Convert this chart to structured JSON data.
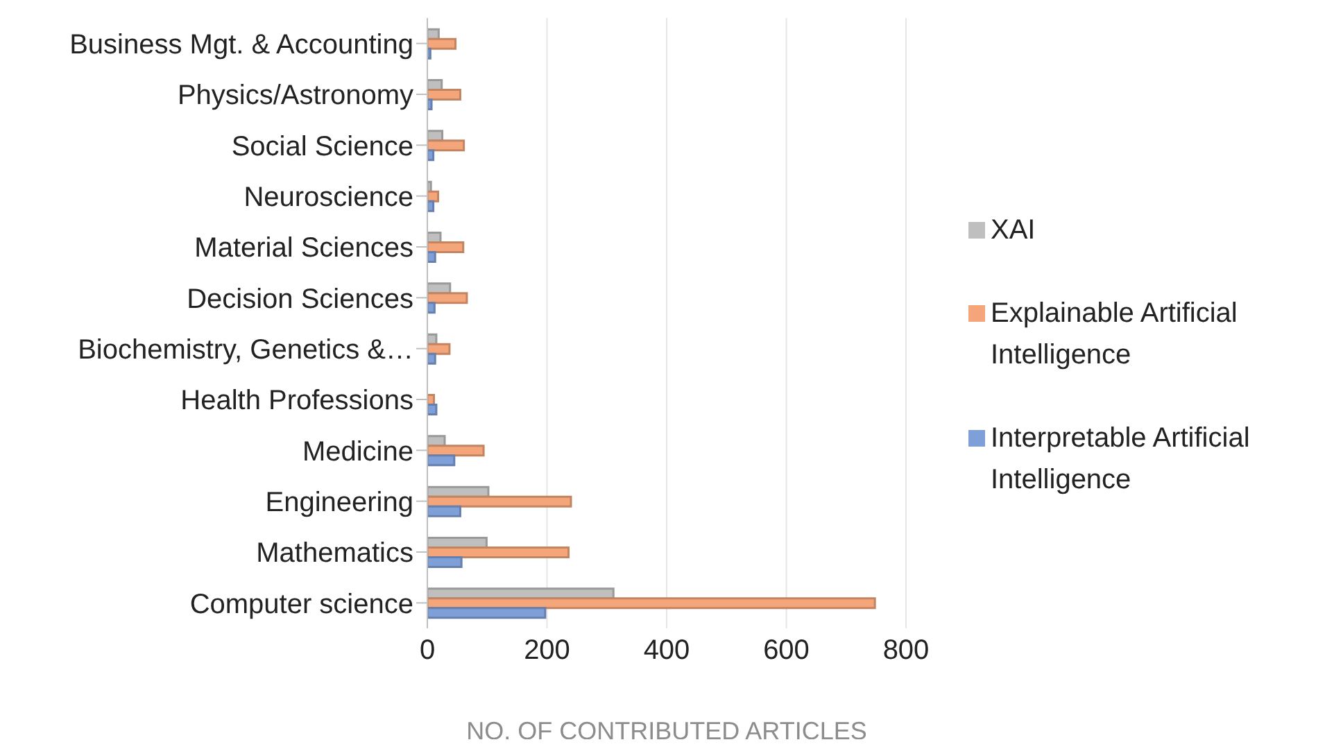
{
  "chart_data": {
    "type": "bar",
    "orientation": "horizontal",
    "xlabel": "NO. OF CONTRIBUTED ARTICLES",
    "categories": [
      "Business Mgt. & Accounting",
      "Physics/Astronomy",
      "Social Science",
      "Neuroscience",
      "Material Sciences",
      "Decision Sciences",
      "Biochemistry, Genetics &…",
      "Health Professions",
      "Medicine",
      "Engineering",
      "Mathematics",
      "Computer science"
    ],
    "series": [
      {
        "name": "XAI",
        "color": "#bfbfbf",
        "values": [
          19,
          24,
          25,
          6,
          22,
          38,
          15,
          0,
          29,
          102,
          99,
          311
        ]
      },
      {
        "name": "Explainable Artificial Intelligence",
        "color": "#f4a57a",
        "values": [
          47,
          55,
          61,
          18,
          60,
          66,
          37,
          11,
          94,
          240,
          236,
          748
        ]
      },
      {
        "name": "Interpretable Artificial Intelligence",
        "color": "#7f9fd8",
        "values": [
          5,
          7,
          10,
          10,
          13,
          12,
          13,
          15,
          45,
          55,
          57,
          197
        ]
      }
    ],
    "xlim": [
      0,
      800
    ],
    "xticks": [
      0,
      200,
      400,
      600,
      800
    ],
    "grid": "x",
    "legend": "right"
  }
}
